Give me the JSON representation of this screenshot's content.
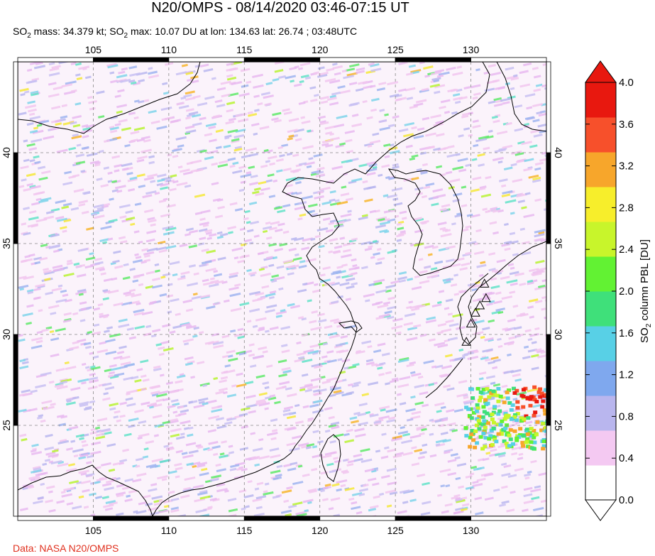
{
  "title": "N20/OMPS - 08/14/2020 03:46-07:15 UT",
  "subtitle": {
    "mass_prefix": "SO",
    "mass_sub": "2",
    "mass_text": " mass: 34.379 kt; SO",
    "max_sub": "2",
    "max_text": " max: 10.07 DU at lon: 134.63 lat: 26.74 ; 03:48UTC"
  },
  "credit": "Data: NASA N20/OMPS",
  "map": {
    "lon_ticks": [
      "105",
      "110",
      "115",
      "120",
      "125",
      "130"
    ],
    "lat_ticks": [
      "40",
      "35",
      "30",
      "25"
    ],
    "lon_values": [
      105,
      110,
      115,
      120,
      125,
      130
    ],
    "lat_values": [
      40,
      35,
      30,
      25
    ],
    "lon_range": [
      100,
      135
    ],
    "lat_range": [
      20,
      45
    ],
    "grid": "dashed"
  },
  "colorbar": {
    "label_prefix": "SO",
    "label_sub": "2",
    "label_text": " column PBL [DU]",
    "ticks": [
      "4.0",
      "3.6",
      "3.2",
      "2.8",
      "2.4",
      "2.0",
      "1.6",
      "1.2",
      "0.8",
      "0.4",
      "0.0"
    ],
    "tick_values": [
      4.0,
      3.6,
      3.2,
      2.8,
      2.4,
      2.0,
      1.6,
      1.2,
      0.8,
      0.4,
      0.0
    ],
    "colors": [
      "#ffffff",
      "#f4c9f2",
      "#b9b6ee",
      "#7fa8ee",
      "#58d0e6",
      "#3fe07a",
      "#62f233",
      "#c8f52b",
      "#f7ee2b",
      "#f7a62b",
      "#f7502b",
      "#e8180f"
    ]
  },
  "colors": {
    "hotspot": "#e8180f",
    "coast": "#000000"
  }
}
